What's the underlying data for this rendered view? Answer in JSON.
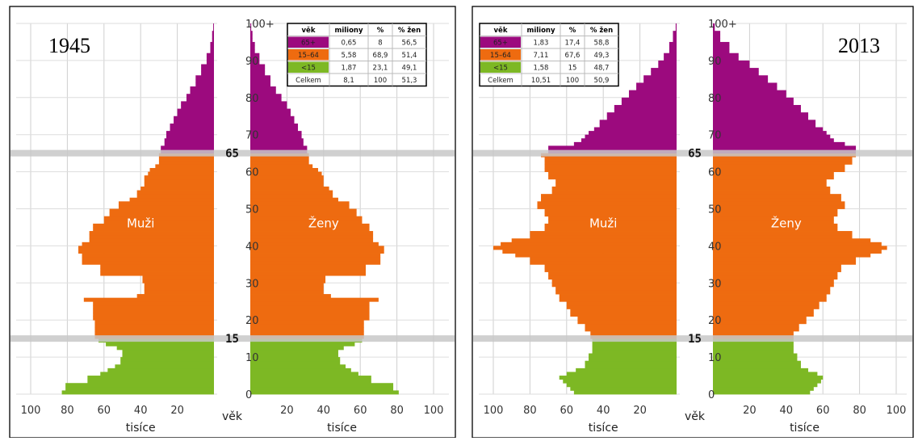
{
  "chart_data": [
    {
      "type": "population-pyramid",
      "year_label": "1945",
      "x_ticks_left": [
        100,
        80,
        60,
        40,
        20
      ],
      "x_ticks_right": [
        20,
        40,
        60,
        80,
        100
      ],
      "y_ticks": [
        "0",
        "10",
        "20",
        "30",
        "40",
        "50",
        "60",
        "70",
        "80",
        "90",
        "100+"
      ],
      "xlabel": "tisíce",
      "ylabel": "věk",
      "xlim": [
        0,
        100
      ],
      "ylim": [
        0,
        100
      ],
      "highlight_ages": [
        "15",
        "65"
      ],
      "left_label": "Muži",
      "right_label": "Ženy",
      "colors": {
        "65+": "#9c0a7e",
        "15-64": "#ee6b10",
        "<15": "#7db824"
      },
      "age_bands": [
        {
          "group": "<15",
          "age_from": 0,
          "age_to": 15,
          "male": [
            [
              0,
              83
            ],
            [
              1,
              81
            ],
            [
              3,
              69
            ],
            [
              5,
              62
            ],
            [
              6,
              58
            ],
            [
              7,
              54
            ],
            [
              8,
              51
            ],
            [
              10,
              50
            ],
            [
              12,
              53
            ],
            [
              13,
              59
            ],
            [
              14,
              63
            ]
          ]
        },
        {
          "group": "15-64",
          "age_from": 15,
          "age_to": 65,
          "male": [
            [
              15,
              65
            ],
            [
              20,
              66
            ],
            [
              25,
              71
            ],
            [
              26,
              42
            ],
            [
              27,
              38
            ],
            [
              30,
              39
            ],
            [
              32,
              62
            ],
            [
              35,
              72
            ],
            [
              38,
              74
            ],
            [
              40,
              72
            ],
            [
              41,
              68
            ],
            [
              44,
              66
            ],
            [
              46,
              60
            ],
            [
              48,
              57
            ],
            [
              50,
              52
            ],
            [
              52,
              46
            ],
            [
              53,
              42
            ],
            [
              55,
              40
            ],
            [
              56,
              38
            ],
            [
              58,
              38
            ],
            [
              59,
              36
            ],
            [
              60,
              35
            ],
            [
              61,
              32
            ],
            [
              62,
              30
            ]
          ]
        },
        {
          "group": "65+",
          "age_from": 65,
          "age_to": 100,
          "male": [
            [
              65,
              29
            ],
            [
              67,
              27
            ],
            [
              69,
              26
            ],
            [
              71,
              24
            ],
            [
              73,
              22
            ],
            [
              75,
              20
            ],
            [
              77,
              18
            ],
            [
              79,
              15
            ],
            [
              81,
              13
            ],
            [
              83,
              10
            ],
            [
              86,
              7
            ],
            [
              89,
              4
            ],
            [
              92,
              2
            ],
            [
              95,
              1
            ],
            [
              98,
              0.4
            ]
          ]
        }
      ],
      "age_bands_female": [
        {
          "group": "<15",
          "age_from": 0,
          "age_to": 15,
          "female": [
            [
              0,
              81
            ],
            [
              1,
              78
            ],
            [
              3,
              66
            ],
            [
              5,
              59
            ],
            [
              6,
              55
            ],
            [
              7,
              52
            ],
            [
              8,
              49
            ],
            [
              10,
              48
            ],
            [
              12,
              51
            ],
            [
              13,
              57
            ],
            [
              14,
              61
            ]
          ]
        },
        {
          "group": "15-64",
          "age_from": 15,
          "age_to": 65,
          "female": [
            [
              15,
              62
            ],
            [
              20,
              65
            ],
            [
              25,
              70
            ],
            [
              26,
              44
            ],
            [
              27,
              40
            ],
            [
              30,
              41
            ],
            [
              32,
              63
            ],
            [
              35,
              71
            ],
            [
              38,
              73
            ],
            [
              40,
              70
            ],
            [
              41,
              67
            ],
            [
              44,
              65
            ],
            [
              46,
              61
            ],
            [
              48,
              58
            ],
            [
              50,
              54
            ],
            [
              52,
              48
            ],
            [
              53,
              45
            ],
            [
              55,
              43
            ],
            [
              56,
              40
            ],
            [
              58,
              40
            ],
            [
              59,
              39
            ],
            [
              60,
              37
            ],
            [
              61,
              34
            ],
            [
              62,
              32
            ]
          ]
        },
        {
          "group": "65+",
          "age_from": 65,
          "age_to": 100,
          "female": [
            [
              65,
              31
            ],
            [
              67,
              29
            ],
            [
              69,
              28
            ],
            [
              71,
              26
            ],
            [
              73,
              24
            ],
            [
              75,
              22
            ],
            [
              77,
              20
            ],
            [
              79,
              17
            ],
            [
              81,
              14
            ],
            [
              83,
              11
            ],
            [
              86,
              8
            ],
            [
              89,
              5
            ],
            [
              92,
              2.5
            ],
            [
              95,
              1.2
            ],
            [
              98,
              0.5
            ]
          ]
        }
      ],
      "table": {
        "headers": [
          "věk",
          "miliony",
          "%",
          "% žen"
        ],
        "rows": [
          [
            "65+",
            "0,65",
            "8",
            "56,5"
          ],
          [
            "15–64",
            "5,58",
            "68,9",
            "51,4"
          ],
          [
            "<15",
            "1,87",
            "23,1",
            "49,1"
          ],
          [
            "Celkem",
            "8,1",
            "100",
            "51,3"
          ]
        ]
      }
    },
    {
      "type": "population-pyramid",
      "year_label": "2013",
      "x_ticks_left": [
        100,
        80,
        60,
        40,
        20
      ],
      "x_ticks_right": [
        20,
        40,
        60,
        80,
        100
      ],
      "y_ticks": [
        "0",
        "10",
        "20",
        "30",
        "40",
        "50",
        "60",
        "70",
        "80",
        "90",
        "100+"
      ],
      "xlabel": "tisíce",
      "ylabel": "věk",
      "xlim": [
        0,
        100
      ],
      "ylim": [
        0,
        100
      ],
      "highlight_ages": [
        "15",
        "65"
      ],
      "left_label": "Muži",
      "right_label": "Ženy",
      "colors": {
        "65+": "#9c0a7e",
        "15-64": "#ee6b10",
        "<15": "#7db824"
      },
      "age_bands": [
        {
          "group": "<15",
          "age_from": 0,
          "age_to": 15,
          "male": [
            [
              0,
              56
            ],
            [
              1,
              58
            ],
            [
              2,
              60
            ],
            [
              3,
              62
            ],
            [
              4,
              64
            ],
            [
              5,
              60
            ],
            [
              6,
              55
            ],
            [
              7,
              50
            ],
            [
              9,
              48
            ],
            [
              11,
              46
            ],
            [
              13,
              46
            ],
            [
              14,
              46
            ]
          ]
        },
        {
          "group": "15-64",
          "age_from": 15,
          "age_to": 65,
          "male": [
            [
              15,
              47
            ],
            [
              17,
              50
            ],
            [
              19,
              54
            ],
            [
              21,
              58
            ],
            [
              23,
              60
            ],
            [
              25,
              64
            ],
            [
              27,
              66
            ],
            [
              29,
              68
            ],
            [
              31,
              70
            ],
            [
              33,
              72
            ],
            [
              35,
              80
            ],
            [
              37,
              88
            ],
            [
              38,
              95
            ],
            [
              39,
              100
            ],
            [
              40,
              96
            ],
            [
              41,
              90
            ],
            [
              42,
              80
            ],
            [
              44,
              72
            ],
            [
              46,
              70
            ],
            [
              48,
              72
            ],
            [
              50,
              76
            ],
            [
              52,
              74
            ],
            [
              54,
              68
            ],
            [
              56,
              66
            ],
            [
              58,
              70
            ],
            [
              60,
              72
            ],
            [
              62,
              72
            ],
            [
              64,
              74
            ]
          ]
        },
        {
          "group": "65+",
          "age_from": 65,
          "age_to": 100,
          "male": [
            [
              65,
              70
            ],
            [
              67,
              56
            ],
            [
              68,
              52
            ],
            [
              69,
              50
            ],
            [
              70,
              48
            ],
            [
              71,
              45
            ],
            [
              72,
              42
            ],
            [
              74,
              38
            ],
            [
              76,
              34
            ],
            [
              78,
              30
            ],
            [
              80,
              26
            ],
            [
              82,
              22
            ],
            [
              84,
              18
            ],
            [
              86,
              14
            ],
            [
              88,
              10
            ],
            [
              90,
              7
            ],
            [
              92,
              4
            ],
            [
              95,
              2
            ],
            [
              98,
              0.5
            ]
          ]
        }
      ],
      "age_bands_female": [
        {
          "group": "<15",
          "age_from": 0,
          "age_to": 15,
          "female": [
            [
              0,
              53
            ],
            [
              1,
              55
            ],
            [
              2,
              57
            ],
            [
              3,
              59
            ],
            [
              4,
              60
            ],
            [
              5,
              57
            ],
            [
              6,
              52
            ],
            [
              7,
              48
            ],
            [
              9,
              46
            ],
            [
              11,
              44
            ],
            [
              13,
              44
            ],
            [
              14,
              44
            ]
          ]
        },
        {
          "group": "15-64",
          "age_from": 15,
          "age_to": 65,
          "female": [
            [
              15,
              44
            ],
            [
              17,
              47
            ],
            [
              19,
              51
            ],
            [
              21,
              55
            ],
            [
              23,
              58
            ],
            [
              25,
              62
            ],
            [
              27,
              64
            ],
            [
              29,
              66
            ],
            [
              31,
              68
            ],
            [
              33,
              70
            ],
            [
              35,
              78
            ],
            [
              37,
              86
            ],
            [
              38,
              92
            ],
            [
              39,
              95
            ],
            [
              40,
              92
            ],
            [
              41,
              86
            ],
            [
              42,
              76
            ],
            [
              44,
              68
            ],
            [
              46,
              66
            ],
            [
              48,
              68
            ],
            [
              50,
              72
            ],
            [
              52,
              70
            ],
            [
              54,
              64
            ],
            [
              56,
              62
            ],
            [
              58,
              66
            ],
            [
              60,
              72
            ],
            [
              62,
              76
            ],
            [
              64,
              78
            ]
          ]
        },
        {
          "group": "65+",
          "age_from": 65,
          "age_to": 100,
          "female": [
            [
              65,
              78
            ],
            [
              67,
              72
            ],
            [
              68,
              66
            ],
            [
              69,
              64
            ],
            [
              70,
              62
            ],
            [
              71,
              60
            ],
            [
              72,
              56
            ],
            [
              74,
              52
            ],
            [
              76,
              48
            ],
            [
              78,
              44
            ],
            [
              80,
              40
            ],
            [
              82,
              35
            ],
            [
              84,
              30
            ],
            [
              86,
              25
            ],
            [
              88,
              20
            ],
            [
              90,
              14
            ],
            [
              92,
              9
            ],
            [
              95,
              4
            ],
            [
              98,
              1
            ]
          ]
        }
      ],
      "table": {
        "headers": [
          "věk",
          "miliony",
          "%",
          "% žen"
        ],
        "rows": [
          [
            "65+",
            "1,83",
            "17,4",
            "58,8"
          ],
          [
            "15–64",
            "7,11",
            "67,6",
            "49,3"
          ],
          [
            "<15",
            "1,58",
            "15",
            "48,7"
          ],
          [
            "Celkem",
            "10,51",
            "100",
            "50,9"
          ]
        ]
      }
    }
  ]
}
